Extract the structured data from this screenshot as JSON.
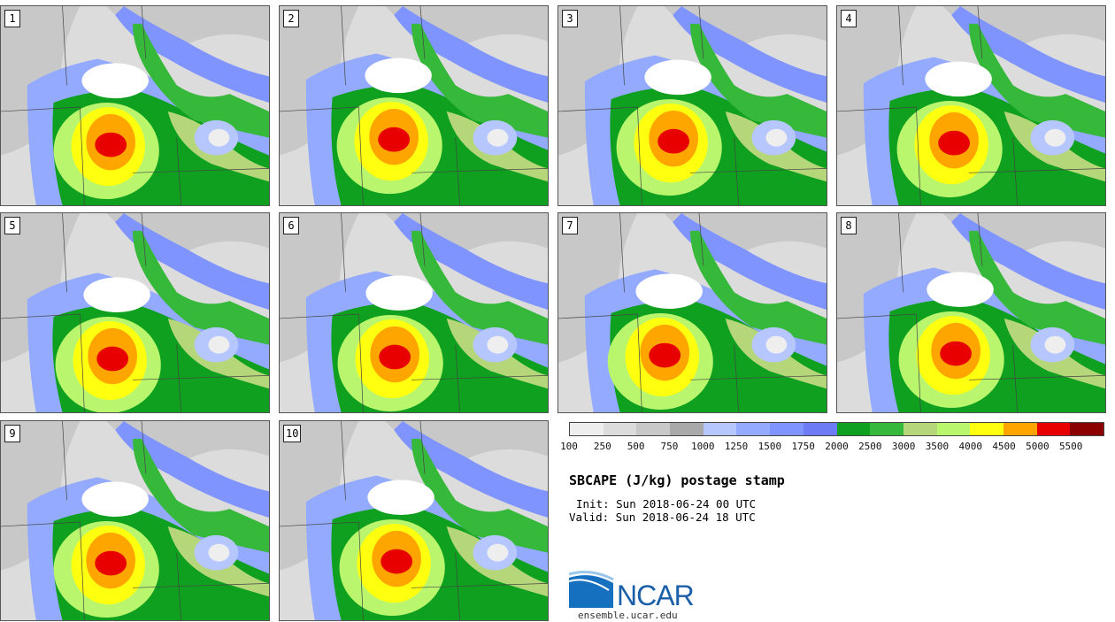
{
  "panels": [
    {
      "label": "1"
    },
    {
      "label": "2"
    },
    {
      "label": "3"
    },
    {
      "label": "4"
    },
    {
      "label": "5"
    },
    {
      "label": "6"
    },
    {
      "label": "7"
    },
    {
      "label": "8"
    },
    {
      "label": "9"
    },
    {
      "label": "10"
    }
  ],
  "colorbar": {
    "colors": [
      "#eeeeee",
      "#dcdcdc",
      "#c8c8c8",
      "#a9a9a9",
      "#b6c7ff",
      "#93aaff",
      "#7f94ff",
      "#6d7cf4",
      "#0ea01e",
      "#36b83a",
      "#b6d67a",
      "#b9f66e",
      "#ffff10",
      "#ffa500",
      "#e80000",
      "#8b0000"
    ],
    "labels": [
      "100",
      "250",
      "500",
      "750",
      "1000",
      "1250",
      "1500",
      "1750",
      "2000",
      "2500",
      "3000",
      "3500",
      "4000",
      "4500",
      "5000",
      "5500"
    ]
  },
  "title": "SBCAPE (J/kg) postage stamp",
  "init": "Init: Sun 2018-06-24 00 UTC",
  "valid": "Valid: Sun 2018-06-24 18 UTC",
  "logo_text": "NCAR",
  "website": "ensemble.ucar.edu"
}
